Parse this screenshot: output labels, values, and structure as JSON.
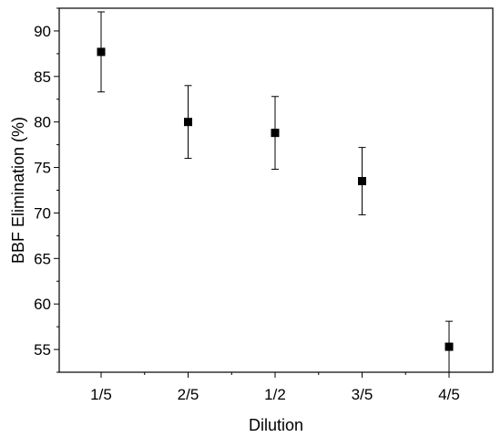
{
  "chart_data": {
    "type": "scatter",
    "title": "",
    "xlabel": "Dilution",
    "ylabel": "BBF Elimination (%)",
    "categories": [
      "1/5",
      "2/5",
      "1/2",
      "3/5",
      "4/5"
    ],
    "series": [
      {
        "values": [
          87.7,
          80.0,
          78.8,
          73.5,
          55.3
        ],
        "errors": [
          4.4,
          4.0,
          4.0,
          3.7,
          2.8
        ]
      }
    ],
    "ylim": [
      52.5,
      92.5
    ],
    "y_ticks": [
      55,
      60,
      65,
      70,
      75,
      80,
      85,
      90
    ],
    "grid": false,
    "legend": "none",
    "marker": "square",
    "colors": {
      "marker": "#000000",
      "axis": "#000000"
    }
  }
}
